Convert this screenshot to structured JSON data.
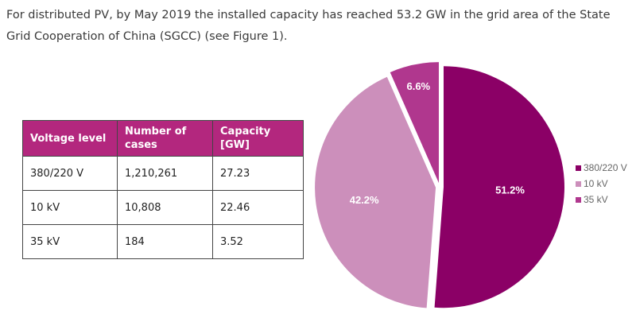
{
  "intro_text": "For distributed PV, by May 2019 the installed capacity has reached 53.2 GW in the grid area of the State Grid Cooperation of China (SGCC) (see Figure 1).",
  "table": {
    "headers": [
      "Voltage level",
      "Number of cases",
      "Capacity [GW]"
    ],
    "rows": [
      [
        "380/220 V",
        "1,210,261",
        "27.23"
      ],
      [
        "10 kV",
        "10,808",
        "22.46"
      ],
      [
        "35 kV",
        "184",
        "3.52"
      ]
    ]
  },
  "colors": {
    "header": "#b3277e",
    "s1": "#8b0066",
    "s2": "#cc8fbb",
    "s3": "#b0378e"
  },
  "chart_data": {
    "type": "pie",
    "categories": [
      "380/220 V",
      "10 kV",
      "35 kV"
    ],
    "values": [
      51.2,
      42.2,
      6.6
    ],
    "data_labels": [
      "51.2%",
      "42.2%",
      "6.6%"
    ],
    "legend_position": "right",
    "exploded": true
  }
}
